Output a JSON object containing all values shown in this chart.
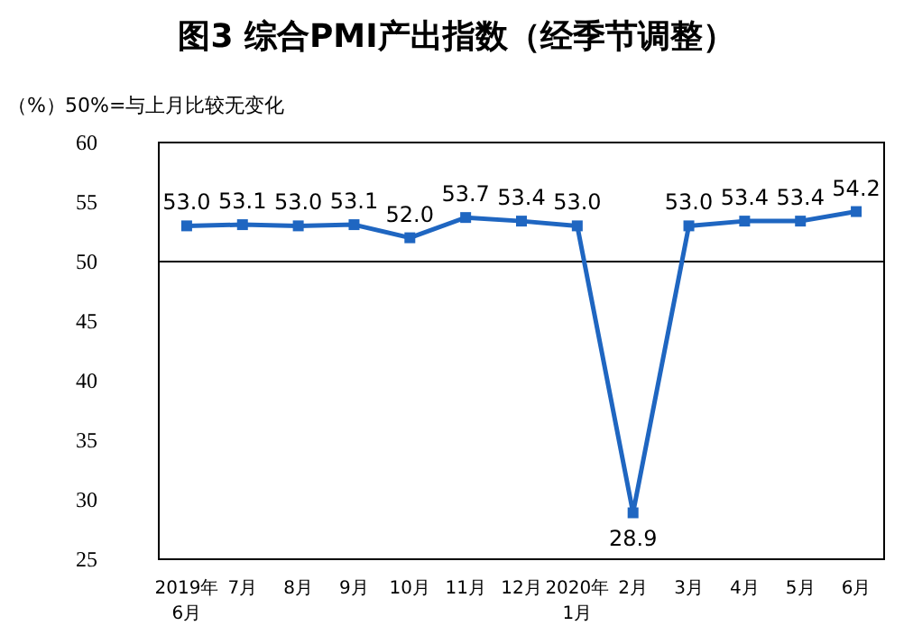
{
  "chart_data": {
    "type": "line",
    "title": "图3 综合PMI产出指数（经季节调整）",
    "ylabel": "（%）",
    "annotations": [
      "50%=与上月比较无变化"
    ],
    "categories": [
      "2019年\n6月",
      "7月",
      "8月",
      "9月",
      "10月",
      "11月",
      "12月",
      "2020年\n1月",
      "2月",
      "3月",
      "4月",
      "5月",
      "6月"
    ],
    "series": [
      {
        "color": "#1f66c1",
        "values": [
          53.0,
          53.1,
          53.0,
          53.1,
          52.0,
          53.7,
          53.4,
          53.0,
          28.9,
          53.0,
          53.4,
          53.4,
          54.2
        ],
        "value_labels": [
          "53.0",
          "53.1",
          "53.0",
          "53.1",
          "52.0",
          "53.7",
          "53.4",
          "53.0",
          "28.9",
          "53.0",
          "53.4",
          "53.4",
          "54.2"
        ]
      }
    ],
    "ylim": [
      25,
      60
    ],
    "yticks": [
      25,
      30,
      35,
      40,
      45,
      50,
      55,
      60
    ],
    "ref_lines": [
      {
        "axis": "y",
        "value": 50,
        "color": "#000000"
      }
    ],
    "marker": "square",
    "line_style": "solid"
  }
}
